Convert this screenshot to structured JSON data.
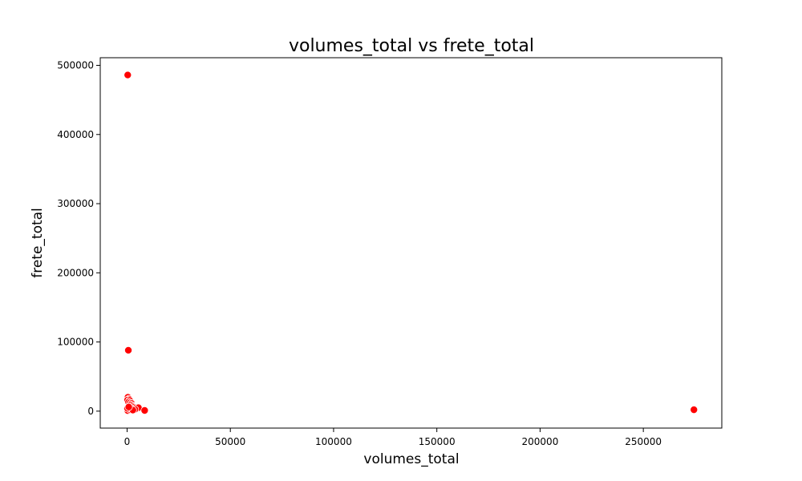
{
  "chart_data": {
    "type": "scatter",
    "title": "volumes_total vs frete_total",
    "xlabel": "volumes_total",
    "ylabel": "frete_total",
    "xlim": [
      -13000,
      288000
    ],
    "ylim": [
      -24500,
      511000
    ],
    "xticks": [
      0,
      50000,
      100000,
      150000,
      200000,
      250000
    ],
    "xtick_labels": [
      "0",
      "50000",
      "100000",
      "150000",
      "200000",
      "250000"
    ],
    "yticks": [
      0,
      100000,
      200000,
      300000,
      400000,
      500000
    ],
    "ytick_labels": [
      "0",
      "100000",
      "200000",
      "300000",
      "400000",
      "500000"
    ],
    "grid": false,
    "marker_color": "#ff0000",
    "marker_edge_color": "#ffffff",
    "series": [
      {
        "points": [
          {
            "x": 300,
            "y": 486000
          },
          {
            "x": 600,
            "y": 88000
          },
          {
            "x": 274500,
            "y": 2000
          },
          {
            "x": 400,
            "y": 20000
          },
          {
            "x": 900,
            "y": 17500
          },
          {
            "x": 200,
            "y": 16000
          },
          {
            "x": 1200,
            "y": 15500
          },
          {
            "x": 700,
            "y": 13000
          },
          {
            "x": 1500,
            "y": 12000
          },
          {
            "x": 2200,
            "y": 11000
          },
          {
            "x": 1800,
            "y": 9000
          },
          {
            "x": 2600,
            "y": 8000
          },
          {
            "x": 3000,
            "y": 6500
          },
          {
            "x": 3500,
            "y": 5500
          },
          {
            "x": 4200,
            "y": 4500
          },
          {
            "x": 5500,
            "y": 5000
          },
          {
            "x": 2000,
            "y": 3500
          },
          {
            "x": 1000,
            "y": 3000
          },
          {
            "x": 500,
            "y": 2500
          },
          {
            "x": 100,
            "y": 1500
          },
          {
            "x": 300,
            "y": 800
          },
          {
            "x": 1500,
            "y": 2000
          },
          {
            "x": 3800,
            "y": 2500
          },
          {
            "x": 8500,
            "y": 1000
          },
          {
            "x": 200,
            "y": 4000
          },
          {
            "x": 2800,
            "y": 1500
          },
          {
            "x": 800,
            "y": 6000
          }
        ]
      }
    ]
  }
}
